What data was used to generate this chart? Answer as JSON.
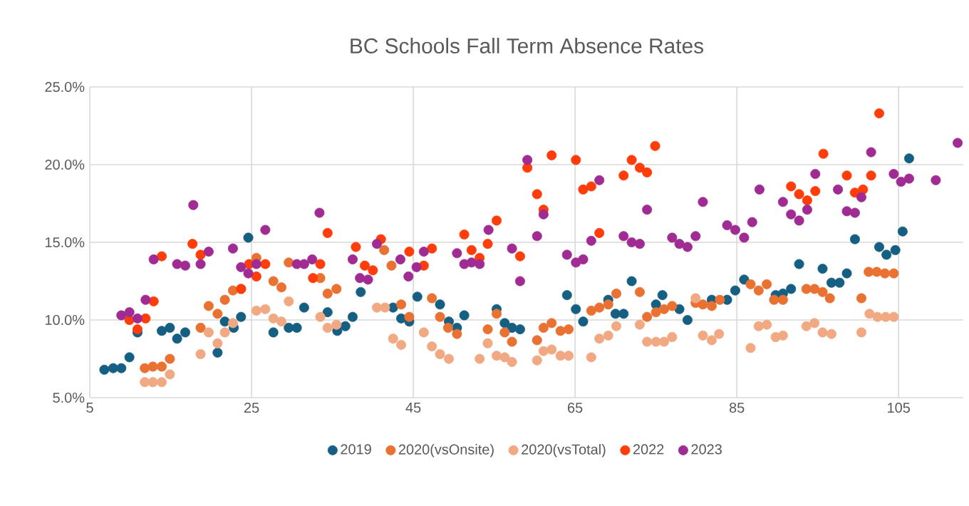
{
  "chart_data": {
    "type": "scatter",
    "title": "BC Schools Fall Term Absence Rates",
    "xlim": [
      5,
      113
    ],
    "xticks": [
      5,
      25,
      45,
      65,
      85,
      105
    ],
    "ylim": [
      5,
      25
    ],
    "yticks": [
      {
        "value": 5,
        "label": "5.0%"
      },
      {
        "value": 10,
        "label": "10.0%"
      },
      {
        "value": 15,
        "label": "15.0%"
      },
      {
        "value": 20,
        "label": "20.0%"
      },
      {
        "value": 25,
        "label": "25.0%"
      }
    ],
    "grid": true,
    "legend": "bottom",
    "marker": "circle",
    "series": [
      {
        "name": "2019",
        "color": "#156082",
        "x": [
          6.8,
          7.9,
          8.9,
          9.9,
          10.9,
          13.9,
          14.9,
          15.8,
          16.8,
          20.8,
          21.7,
          22.8,
          23.7,
          24.6,
          27.7,
          29.6,
          30.6,
          31.5,
          34.4,
          35.6,
          36.6,
          37.5,
          38.5,
          42.5,
          43.5,
          44.5,
          45.5,
          48.3,
          49.4,
          50.4,
          51.3,
          55.3,
          56.3,
          57.2,
          58.2,
          64.0,
          65.1,
          66.0,
          69.1,
          70.0,
          71.0,
          72.0,
          75.0,
          75.8,
          77.9,
          78.9,
          81.9,
          83.8,
          84.8,
          85.9,
          89.8,
          90.7,
          91.7,
          92.7,
          95.6,
          96.7,
          97.7,
          98.6,
          99.6,
          102.6,
          103.5,
          104.6,
          105.5,
          106.3
        ],
        "values": [
          6.8,
          6.9,
          6.9,
          7.6,
          9.2,
          9.3,
          9.5,
          8.8,
          9.2,
          7.9,
          9.9,
          9.5,
          10.2,
          15.3,
          9.2,
          9.5,
          9.5,
          10.8,
          10.5,
          9.3,
          9.6,
          10.2,
          11.8,
          10.8,
          10.1,
          9.9,
          11.5,
          11.0,
          9.9,
          9.5,
          10.3,
          10.7,
          9.8,
          9.5,
          9.4,
          11.6,
          10.7,
          9.9,
          11.3,
          10.4,
          10.4,
          12.5,
          11.0,
          11.6,
          10.7,
          10.0,
          11.3,
          11.3,
          11.9,
          12.6,
          11.6,
          11.7,
          12.0,
          13.6,
          13.3,
          12.4,
          12.4,
          13.0,
          15.2,
          14.7,
          14.2,
          14.5,
          15.7,
          20.4
        ]
      },
      {
        "name": "2020(vsOnsite)",
        "color": "#e97132",
        "x": [
          11.8,
          12.8,
          13.9,
          14.9,
          18.7,
          19.7,
          20.8,
          21.7,
          22.7,
          23.7,
          25.6,
          27.7,
          28.7,
          29.6,
          33.5,
          34.4,
          35.5,
          41.4,
          42.3,
          43.5,
          44.5,
          47.3,
          48.3,
          49.3,
          50.4,
          54.2,
          55.3,
          56.3,
          57.2,
          60.3,
          61.1,
          62.1,
          63.2,
          64.2,
          67.0,
          68.0,
          69.1,
          70.1,
          73.0,
          73.9,
          75.0,
          76.0,
          77.0,
          79.9,
          80.8,
          81.9,
          82.9,
          86.7,
          87.7,
          88.7,
          89.6,
          90.7,
          93.6,
          94.6,
          95.6,
          96.5,
          100.4,
          101.3,
          102.3,
          103.3,
          104.4
        ],
        "values": [
          6.9,
          7.0,
          7.0,
          7.5,
          9.5,
          10.9,
          10.4,
          11.3,
          11.9,
          12.0,
          14.0,
          12.5,
          12.1,
          13.7,
          12.7,
          11.7,
          12.0,
          14.5,
          13.5,
          11.0,
          10.2,
          11.4,
          10.2,
          9.5,
          9.1,
          9.4,
          10.4,
          9.2,
          8.6,
          8.7,
          9.5,
          9.8,
          9.3,
          9.4,
          10.6,
          10.8,
          11.0,
          11.7,
          11.8,
          10.2,
          10.5,
          10.7,
          10.9,
          11.1,
          11.0,
          10.9,
          11.3,
          12.3,
          11.9,
          12.3,
          11.3,
          11.3,
          12.0,
          12.0,
          11.8,
          11.4,
          11.4,
          13.1,
          13.1,
          13.0,
          13.0
        ]
      },
      {
        "name": "2020(vsTotal)",
        "color": "#f1a983",
        "x": [
          11.8,
          12.8,
          13.9,
          14.9,
          18.7,
          19.7,
          20.8,
          21.7,
          22.7,
          25.6,
          26.7,
          27.7,
          28.7,
          29.6,
          33.5,
          34.4,
          35.5,
          40.5,
          41.5,
          42.5,
          43.5,
          46.3,
          47.3,
          48.3,
          49.4,
          53.2,
          54.2,
          55.3,
          56.3,
          57.2,
          60.3,
          61.1,
          62.1,
          63.2,
          64.2,
          67.0,
          68.0,
          69.1,
          70.1,
          73.0,
          73.9,
          75.0,
          76.0,
          77.0,
          79.9,
          80.8,
          81.9,
          82.8,
          86.7,
          87.7,
          88.7,
          89.8,
          90.7,
          93.6,
          94.6,
          95.6,
          96.7,
          100.4,
          101.4,
          102.4,
          103.4,
          104.4
        ],
        "values": [
          6.0,
          6.0,
          6.0,
          6.5,
          7.8,
          9.2,
          8.5,
          9.2,
          9.8,
          10.6,
          10.7,
          10.1,
          9.9,
          11.2,
          10.2,
          9.5,
          9.7,
          10.8,
          10.8,
          8.8,
          8.4,
          9.2,
          8.3,
          7.8,
          7.5,
          7.5,
          8.5,
          7.7,
          7.6,
          7.3,
          7.4,
          8.0,
          8.1,
          7.7,
          7.7,
          7.6,
          8.8,
          9.0,
          9.6,
          9.7,
          8.6,
          8.6,
          8.6,
          8.9,
          11.4,
          9.0,
          8.7,
          9.1,
          8.2,
          9.6,
          9.7,
          8.9,
          9.0,
          9.6,
          9.8,
          9.2,
          9.1,
          9.2,
          10.4,
          10.2,
          10.2,
          10.2
        ]
      },
      {
        "name": "2022",
        "color": "#fe3d0a",
        "x": [
          9.9,
          10.9,
          11.9,
          12.9,
          13.9,
          17.7,
          18.7,
          23.7,
          24.7,
          25.6,
          26.7,
          32.6,
          33.5,
          34.4,
          37.9,
          39.0,
          40.0,
          41.0,
          44.5,
          46.3,
          47.3,
          51.3,
          52.2,
          53.2,
          54.2,
          55.3,
          58.2,
          59.1,
          60.3,
          61.1,
          62.1,
          65.1,
          66.0,
          67.0,
          68.0,
          71.0,
          72.0,
          73.0,
          73.9,
          74.9,
          91.7,
          92.7,
          93.7,
          94.7,
          95.7,
          98.6,
          99.6,
          100.6,
          101.6,
          102.6
        ],
        "values": [
          10.0,
          9.4,
          10.1,
          11.2,
          14.1,
          14.9,
          14.2,
          12.0,
          13.6,
          12.8,
          13.6,
          12.7,
          13.6,
          15.6,
          14.7,
          13.5,
          13.2,
          15.2,
          14.4,
          13.5,
          14.6,
          15.5,
          14.5,
          14.0,
          14.9,
          16.4,
          14.1,
          19.8,
          18.1,
          17.1,
          20.6,
          20.3,
          18.4,
          18.6,
          15.6,
          19.3,
          20.3,
          19.8,
          19.5,
          21.2,
          18.6,
          18.1,
          17.7,
          18.3,
          20.7,
          19.3,
          18.2,
          18.4,
          19.3,
          23.3
        ]
      },
      {
        "name": "2023",
        "color": "#a02b93",
        "x": [
          8.9,
          9.9,
          10.9,
          11.9,
          12.9,
          15.8,
          16.8,
          17.8,
          18.7,
          19.7,
          22.7,
          23.7,
          24.6,
          25.6,
          26.7,
          30.6,
          31.5,
          32.5,
          33.4,
          37.5,
          38.4,
          39.4,
          40.5,
          43.4,
          44.4,
          45.4,
          46.3,
          50.4,
          51.3,
          52.2,
          53.2,
          54.3,
          57.2,
          58.2,
          59.1,
          60.3,
          61.1,
          64.0,
          65.1,
          66.0,
          67.0,
          68.0,
          71.0,
          72.0,
          73.0,
          73.9,
          77.0,
          77.9,
          78.9,
          79.9,
          80.8,
          83.8,
          84.8,
          85.9,
          86.9,
          87.8,
          90.7,
          91.7,
          92.7,
          93.7,
          94.7,
          97.5,
          98.6,
          99.6,
          100.4,
          101.6,
          104.4,
          105.3,
          106.3,
          109.6,
          112.3
        ],
        "values": [
          10.3,
          10.5,
          10.1,
          11.3,
          13.9,
          13.6,
          13.5,
          17.4,
          13.6,
          14.4,
          14.6,
          13.4,
          13.0,
          13.6,
          15.8,
          13.6,
          13.6,
          13.9,
          16.9,
          13.9,
          12.7,
          12.6,
          14.9,
          13.9,
          12.8,
          13.4,
          14.4,
          14.3,
          13.6,
          13.7,
          13.6,
          15.8,
          14.6,
          12.5,
          20.3,
          15.4,
          16.8,
          14.2,
          13.7,
          13.9,
          15.1,
          19.0,
          15.4,
          15.0,
          14.9,
          17.1,
          15.3,
          14.9,
          14.7,
          15.4,
          17.6,
          16.1,
          15.8,
          15.3,
          16.3,
          18.4,
          17.6,
          16.8,
          16.4,
          17.1,
          19.4,
          18.4,
          17.0,
          16.9,
          17.9,
          20.8,
          19.4,
          18.9,
          19.1,
          19.0,
          21.4
        ]
      }
    ]
  }
}
